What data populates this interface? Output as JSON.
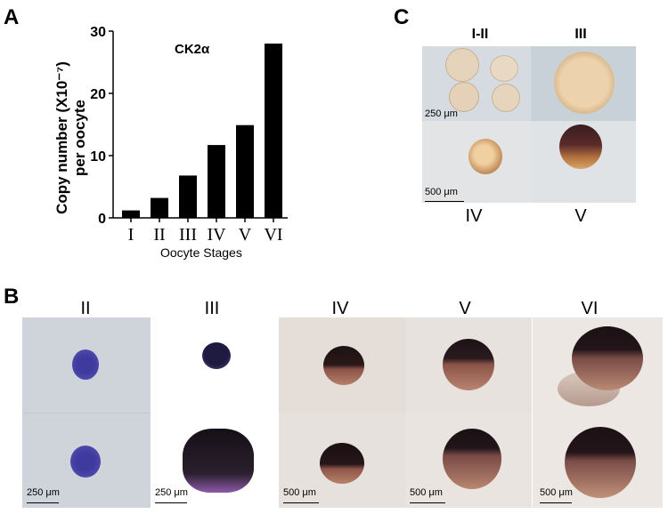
{
  "panels": {
    "a": "A",
    "b": "B",
    "c": "C"
  },
  "chart_data": {
    "type": "bar",
    "title": "CK2α",
    "ylabel_line1": "Copy number (X10⁻⁷)",
    "ylabel_line2": "per oocyte",
    "xlabel": "Oocyte Stages",
    "categories": [
      "I",
      "II",
      "III",
      "IV",
      "V",
      "VI"
    ],
    "values": [
      1.2,
      3.2,
      6.8,
      11.7,
      14.9,
      28.0
    ],
    "ylim": [
      0,
      30
    ],
    "yticks": [
      "0",
      "10",
      "20",
      "30"
    ],
    "grid": false
  },
  "panel_b": {
    "stages": [
      "II",
      "III",
      "IV",
      "V",
      "VI"
    ],
    "scale_labels": [
      "250 μm",
      "250 μm",
      "500 μm",
      "500 μm",
      "500 μm"
    ]
  },
  "panel_c": {
    "top_labels": [
      "I-II",
      "III"
    ],
    "bottom_labels": [
      "IV",
      "V"
    ],
    "scale_labels": [
      "250 μm",
      "500 μm"
    ]
  }
}
